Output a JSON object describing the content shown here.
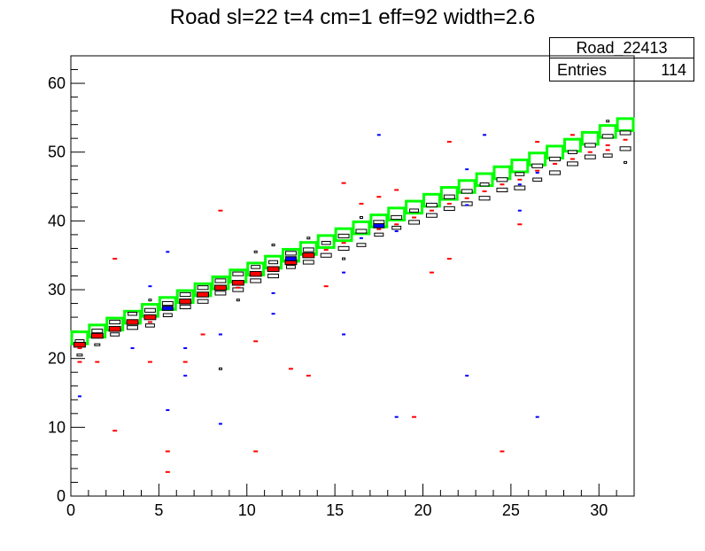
{
  "chart_data": {
    "type": "heatmap",
    "title": "Road sl=22 t=4 cm=1 eff=92 width=2.6",
    "stats": {
      "name": "Road_22413",
      "entries_label": "Entries",
      "entries_value": "114"
    },
    "xlim": [
      0,
      32
    ],
    "ylim": [
      0,
      64
    ],
    "x_ticks": [
      0,
      5,
      10,
      15,
      20,
      25,
      30
    ],
    "y_ticks": [
      0,
      10,
      20,
      30,
      40,
      50,
      60
    ],
    "colors": {
      "road": "#00ff00",
      "main_hit": "#ff0000",
      "secondary_hit": "#0000ff",
      "box": "#000000"
    },
    "road_cells": [
      {
        "x": 0,
        "y": 22
      },
      {
        "x": 1,
        "y": 23
      },
      {
        "x": 2,
        "y": 24
      },
      {
        "x": 3,
        "y": 25
      },
      {
        "x": 4,
        "y": 26
      },
      {
        "x": 5,
        "y": 27
      },
      {
        "x": 6,
        "y": 28
      },
      {
        "x": 7,
        "y": 29
      },
      {
        "x": 8,
        "y": 30
      },
      {
        "x": 9,
        "y": 31
      },
      {
        "x": 10,
        "y": 32
      },
      {
        "x": 11,
        "y": 33
      },
      {
        "x": 12,
        "y": 34
      },
      {
        "x": 13,
        "y": 35
      },
      {
        "x": 14,
        "y": 36
      },
      {
        "x": 15,
        "y": 37
      },
      {
        "x": 16,
        "y": 38
      },
      {
        "x": 17,
        "y": 39
      },
      {
        "x": 18,
        "y": 40
      },
      {
        "x": 19,
        "y": 41
      },
      {
        "x": 20,
        "y": 42
      },
      {
        "x": 21,
        "y": 43
      },
      {
        "x": 22,
        "y": 44
      },
      {
        "x": 23,
        "y": 45
      },
      {
        "x": 24,
        "y": 46
      },
      {
        "x": 25,
        "y": 47
      },
      {
        "x": 26,
        "y": 48
      },
      {
        "x": 27,
        "y": 49
      },
      {
        "x": 28,
        "y": 50
      },
      {
        "x": 29,
        "y": 51
      },
      {
        "x": 30,
        "y": 52
      },
      {
        "x": 31,
        "y": 53
      }
    ],
    "red_hits": [
      {
        "x": 0.5,
        "y": 22.0
      },
      {
        "x": 1.5,
        "y": 23.3
      },
      {
        "x": 2.5,
        "y": 24.3
      },
      {
        "x": 3.5,
        "y": 25.3
      },
      {
        "x": 4.5,
        "y": 26.0
      },
      {
        "x": 6.5,
        "y": 28.3
      },
      {
        "x": 7.5,
        "y": 29.3
      },
      {
        "x": 8.5,
        "y": 30.3
      },
      {
        "x": 9.5,
        "y": 31.0
      },
      {
        "x": 10.5,
        "y": 32.3
      },
      {
        "x": 11.5,
        "y": 33.0
      },
      {
        "x": 12.5,
        "y": 34.0
      },
      {
        "x": 13.5,
        "y": 35.0
      },
      {
        "x": 14.5,
        "y": 35.8
      },
      {
        "x": 15.5,
        "y": 36.8
      },
      {
        "x": 17.5,
        "y": 38.8
      },
      {
        "x": 18.5,
        "y": 39.5
      },
      {
        "x": 19.5,
        "y": 40.5
      },
      {
        "x": 20.5,
        "y": 41.5
      },
      {
        "x": 21.5,
        "y": 42.5
      },
      {
        "x": 23.5,
        "y": 44.3
      },
      {
        "x": 24.5,
        "y": 45.3
      },
      {
        "x": 25.5,
        "y": 46.0
      },
      {
        "x": 26.5,
        "y": 47.3
      },
      {
        "x": 27.5,
        "y": 48.3
      },
      {
        "x": 28.5,
        "y": 49.0
      },
      {
        "x": 29.5,
        "y": 50.0
      },
      {
        "x": 30.5,
        "y": 51.0
      },
      {
        "x": 31.5,
        "y": 51.8
      },
      {
        "x": 0.5,
        "y": 21.5
      },
      {
        "x": 4.5,
        "y": 25.3
      },
      {
        "x": 9.5,
        "y": 30.3
      },
      {
        "x": 22.5,
        "y": 43.3
      },
      {
        "x": 30.5,
        "y": 50.3
      },
      {
        "x": 0.5,
        "y": 19.5
      },
      {
        "x": 1.5,
        "y": 19.5
      },
      {
        "x": 2.5,
        "y": 34.5
      },
      {
        "x": 2.5,
        "y": 9.5
      },
      {
        "x": 4.5,
        "y": 19.5
      },
      {
        "x": 5.5,
        "y": 6.5
      },
      {
        "x": 5.5,
        "y": 3.5
      },
      {
        "x": 6.5,
        "y": 19.5
      },
      {
        "x": 7.5,
        "y": 23.5
      },
      {
        "x": 8.5,
        "y": 41.5
      },
      {
        "x": 10.5,
        "y": 22.5
      },
      {
        "x": 10.5,
        "y": 6.5
      },
      {
        "x": 12.5,
        "y": 18.5
      },
      {
        "x": 13.5,
        "y": 17.5
      },
      {
        "x": 14.5,
        "y": 30.5
      },
      {
        "x": 15.5,
        "y": 45.5
      },
      {
        "x": 16.5,
        "y": 42.5
      },
      {
        "x": 17.5,
        "y": 43.5
      },
      {
        "x": 18.5,
        "y": 44.5
      },
      {
        "x": 19.5,
        "y": 11.5
      },
      {
        "x": 20.5,
        "y": 32.5
      },
      {
        "x": 21.5,
        "y": 34.5
      },
      {
        "x": 21.5,
        "y": 51.5
      },
      {
        "x": 24.5,
        "y": 6.5
      },
      {
        "x": 25.5,
        "y": 39.5
      },
      {
        "x": 26.5,
        "y": 51.5
      },
      {
        "x": 28.5,
        "y": 52.5
      }
    ],
    "blue_hits": [
      {
        "x": 5.5,
        "y": 27.3
      },
      {
        "x": 12.5,
        "y": 34.5
      },
      {
        "x": 16.5,
        "y": 37.5
      },
      {
        "x": 17.5,
        "y": 39.3
      },
      {
        "x": 18.5,
        "y": 38.5
      },
      {
        "x": 22.5,
        "y": 42.3
      },
      {
        "x": 25.5,
        "y": 45.3
      },
      {
        "x": 26.5,
        "y": 47.0
      },
      {
        "x": 0.5,
        "y": 14.5
      },
      {
        "x": 3.5,
        "y": 21.5
      },
      {
        "x": 4.5,
        "y": 30.5
      },
      {
        "x": 5.5,
        "y": 35.5
      },
      {
        "x": 5.5,
        "y": 12.5
      },
      {
        "x": 6.5,
        "y": 21.5
      },
      {
        "x": 6.5,
        "y": 17.5
      },
      {
        "x": 8.5,
        "y": 23.5
      },
      {
        "x": 8.5,
        "y": 10.5
      },
      {
        "x": 11.5,
        "y": 29.5
      },
      {
        "x": 11.5,
        "y": 26.5
      },
      {
        "x": 15.5,
        "y": 32.5
      },
      {
        "x": 15.5,
        "y": 23.5
      },
      {
        "x": 17.5,
        "y": 52.5
      },
      {
        "x": 18.5,
        "y": 11.5
      },
      {
        "x": 22.5,
        "y": 47.5
      },
      {
        "x": 22.5,
        "y": 17.5
      },
      {
        "x": 23.5,
        "y": 52.5
      },
      {
        "x": 25.5,
        "y": 41.5
      },
      {
        "x": 26.5,
        "y": 11.5
      }
    ],
    "white_boxes": [
      {
        "x": 0.5,
        "y": 22.5,
        "w": 0.5
      },
      {
        "x": 0.5,
        "y": 20.5,
        "w": 0.3
      },
      {
        "x": 1.5,
        "y": 24.0,
        "w": 0.6
      },
      {
        "x": 1.5,
        "y": 22.0,
        "w": 0.3
      },
      {
        "x": 2.5,
        "y": 25.3,
        "w": 0.6
      },
      {
        "x": 2.5,
        "y": 23.5,
        "w": 0.5
      },
      {
        "x": 3.5,
        "y": 26.5,
        "w": 0.5
      },
      {
        "x": 3.5,
        "y": 24.5,
        "w": 0.6
      },
      {
        "x": 4.5,
        "y": 27.0,
        "w": 0.6
      },
      {
        "x": 4.5,
        "y": 24.8,
        "w": 0.5
      },
      {
        "x": 5.5,
        "y": 28.0,
        "w": 0.6
      },
      {
        "x": 5.5,
        "y": 26.3,
        "w": 0.5
      },
      {
        "x": 6.5,
        "y": 29.3,
        "w": 0.6
      },
      {
        "x": 6.5,
        "y": 27.5,
        "w": 0.6
      },
      {
        "x": 7.5,
        "y": 30.3,
        "w": 0.6
      },
      {
        "x": 7.5,
        "y": 28.3,
        "w": 0.6
      },
      {
        "x": 8.5,
        "y": 31.3,
        "w": 0.6
      },
      {
        "x": 8.5,
        "y": 29.5,
        "w": 0.6
      },
      {
        "x": 9.5,
        "y": 32.3,
        "w": 0.6
      },
      {
        "x": 9.5,
        "y": 30.0,
        "w": 0.6
      },
      {
        "x": 10.5,
        "y": 33.3,
        "w": 0.5
      },
      {
        "x": 10.5,
        "y": 31.3,
        "w": 0.6
      },
      {
        "x": 11.5,
        "y": 34.0,
        "w": 0.5
      },
      {
        "x": 11.5,
        "y": 32.0,
        "w": 0.6
      },
      {
        "x": 12.5,
        "y": 35.3,
        "w": 0.6
      },
      {
        "x": 12.5,
        "y": 33.3,
        "w": 0.5
      },
      {
        "x": 13.5,
        "y": 35.8,
        "w": 0.6
      },
      {
        "x": 13.5,
        "y": 34.0,
        "w": 0.6
      },
      {
        "x": 14.5,
        "y": 36.8,
        "w": 0.5
      },
      {
        "x": 14.5,
        "y": 35.0,
        "w": 0.6
      },
      {
        "x": 15.5,
        "y": 37.8,
        "w": 0.6
      },
      {
        "x": 15.5,
        "y": 36.0,
        "w": 0.6
      },
      {
        "x": 16.5,
        "y": 38.5,
        "w": 0.6
      },
      {
        "x": 16.5,
        "y": 36.5,
        "w": 0.5
      },
      {
        "x": 17.5,
        "y": 39.8,
        "w": 0.6
      },
      {
        "x": 17.5,
        "y": 38.0,
        "w": 0.5
      },
      {
        "x": 18.5,
        "y": 40.5,
        "w": 0.6
      },
      {
        "x": 18.5,
        "y": 39.0,
        "w": 0.5
      },
      {
        "x": 19.5,
        "y": 41.5,
        "w": 0.5
      },
      {
        "x": 19.5,
        "y": 39.8,
        "w": 0.6
      },
      {
        "x": 20.5,
        "y": 42.3,
        "w": 0.6
      },
      {
        "x": 20.5,
        "y": 40.8,
        "w": 0.6
      },
      {
        "x": 21.5,
        "y": 43.5,
        "w": 0.6
      },
      {
        "x": 21.5,
        "y": 41.8,
        "w": 0.6
      },
      {
        "x": 22.5,
        "y": 44.3,
        "w": 0.6
      },
      {
        "x": 22.5,
        "y": 42.5,
        "w": 0.6
      },
      {
        "x": 23.5,
        "y": 45.3,
        "w": 0.5
      },
      {
        "x": 23.5,
        "y": 43.3,
        "w": 0.6
      },
      {
        "x": 24.5,
        "y": 46.0,
        "w": 0.6
      },
      {
        "x": 24.5,
        "y": 44.5,
        "w": 0.6
      },
      {
        "x": 25.5,
        "y": 46.8,
        "w": 0.5
      },
      {
        "x": 25.5,
        "y": 44.8,
        "w": 0.6
      },
      {
        "x": 26.5,
        "y": 48.0,
        "w": 0.6
      },
      {
        "x": 26.5,
        "y": 46.0,
        "w": 0.5
      },
      {
        "x": 27.5,
        "y": 49.0,
        "w": 0.6
      },
      {
        "x": 27.5,
        "y": 47.0,
        "w": 0.6
      },
      {
        "x": 28.5,
        "y": 50.0,
        "w": 0.5
      },
      {
        "x": 28.5,
        "y": 48.3,
        "w": 0.6
      },
      {
        "x": 29.5,
        "y": 51.0,
        "w": 0.6
      },
      {
        "x": 29.5,
        "y": 49.3,
        "w": 0.6
      },
      {
        "x": 30.5,
        "y": 52.3,
        "w": 0.6
      },
      {
        "x": 30.5,
        "y": 49.5,
        "w": 0.5
      },
      {
        "x": 31.5,
        "y": 52.8,
        "w": 0.6
      },
      {
        "x": 31.5,
        "y": 50.5,
        "w": 0.6
      },
      {
        "x": 10.5,
        "y": 35.5,
        "w": 0.1
      },
      {
        "x": 11.5,
        "y": 36.5,
        "w": 0.1
      },
      {
        "x": 13.5,
        "y": 37.5,
        "w": 0.1
      },
      {
        "x": 16.5,
        "y": 40.5,
        "w": 0.1
      },
      {
        "x": 4.5,
        "y": 28.5,
        "w": 0.1
      },
      {
        "x": 8.5,
        "y": 18.5,
        "w": 0.1
      },
      {
        "x": 9.5,
        "y": 28.5,
        "w": 0.1
      },
      {
        "x": 15.5,
        "y": 34.5,
        "w": 0.1
      },
      {
        "x": 30.5,
        "y": 54.5,
        "w": 0.1
      },
      {
        "x": 31.5,
        "y": 48.5,
        "w": 0.1
      }
    ]
  }
}
